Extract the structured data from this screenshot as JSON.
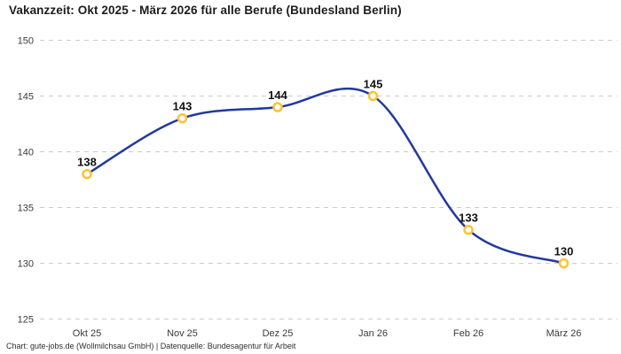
{
  "title": "Vakanzzeit: Okt 2025 - März 2026 für alle Berufe (Bundesland Berlin)",
  "footer": "Chart: gute-jobs.de (Wollmilchsau GmbH) | Datenquelle: Bundesagentur für Arbeit",
  "chart_data": {
    "type": "line",
    "title": "Vakanzzeit: Okt 2025 - März 2026 für alle Berufe (Bundesland Berlin)",
    "categories": [
      "Okt 25",
      "Nov 25",
      "Dez 25",
      "Jan 26",
      "Feb 26",
      "März 26"
    ],
    "values": [
      138,
      143,
      144,
      145,
      133,
      130
    ],
    "xlabel": "",
    "ylabel": "",
    "ylim": [
      125,
      150
    ],
    "ytick_step": 5,
    "yticks": [
      125,
      130,
      135,
      140,
      145,
      150
    ],
    "grid": "horizontal-dashed",
    "legend": "none",
    "point_labels": true,
    "line_style": "smooth",
    "colors": {
      "line": "#21399e",
      "marker_stroke": "#fcc330",
      "marker_fill": "#ffffff",
      "grid": "#cbcbcb",
      "tick_text": "#3a3a3a",
      "point_label_text": "#111111",
      "title_text": "#1d1d1d",
      "background": "#ffffff"
    }
  }
}
